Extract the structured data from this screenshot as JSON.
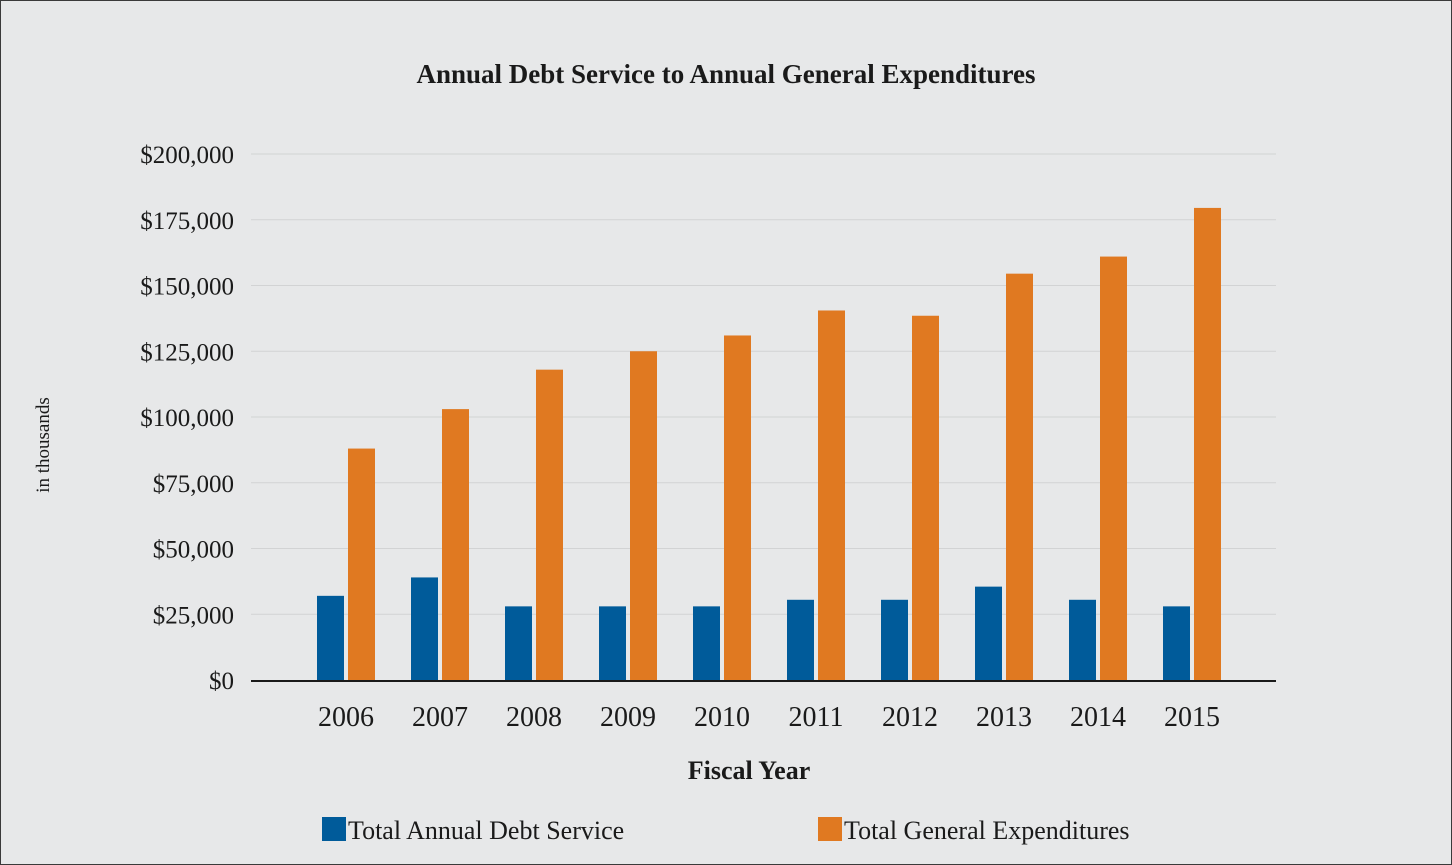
{
  "chart_data": {
    "type": "bar",
    "title": "Annual Debt Service to Annual General Expenditures",
    "xlabel": "Fiscal Year",
    "ylabel": "in thousands",
    "categories": [
      "2006",
      "2007",
      "2008",
      "2009",
      "2010",
      "2011",
      "2012",
      "2013",
      "2014",
      "2015"
    ],
    "series": [
      {
        "name": "Total Annual Debt Service",
        "color": "#005b9a",
        "values": [
          32000,
          39000,
          28000,
          28000,
          28000,
          30500,
          30500,
          35500,
          30500,
          28000
        ]
      },
      {
        "name": "Total General Expenditures",
        "color": "#e07921",
        "values": [
          88000,
          103000,
          118000,
          125000,
          131000,
          140500,
          138500,
          154500,
          161000,
          179500
        ]
      }
    ],
    "ylim": [
      0,
      200000
    ],
    "yticks": [
      0,
      25000,
      50000,
      75000,
      100000,
      125000,
      150000,
      175000,
      200000
    ],
    "ytick_labels": [
      "$0",
      "$25,000",
      "$50,000",
      "$75,000",
      "$100,000",
      "$125,000",
      "$150,000",
      "$175,000",
      "$200,000"
    ],
    "grid": true,
    "legend_position": "bottom"
  }
}
